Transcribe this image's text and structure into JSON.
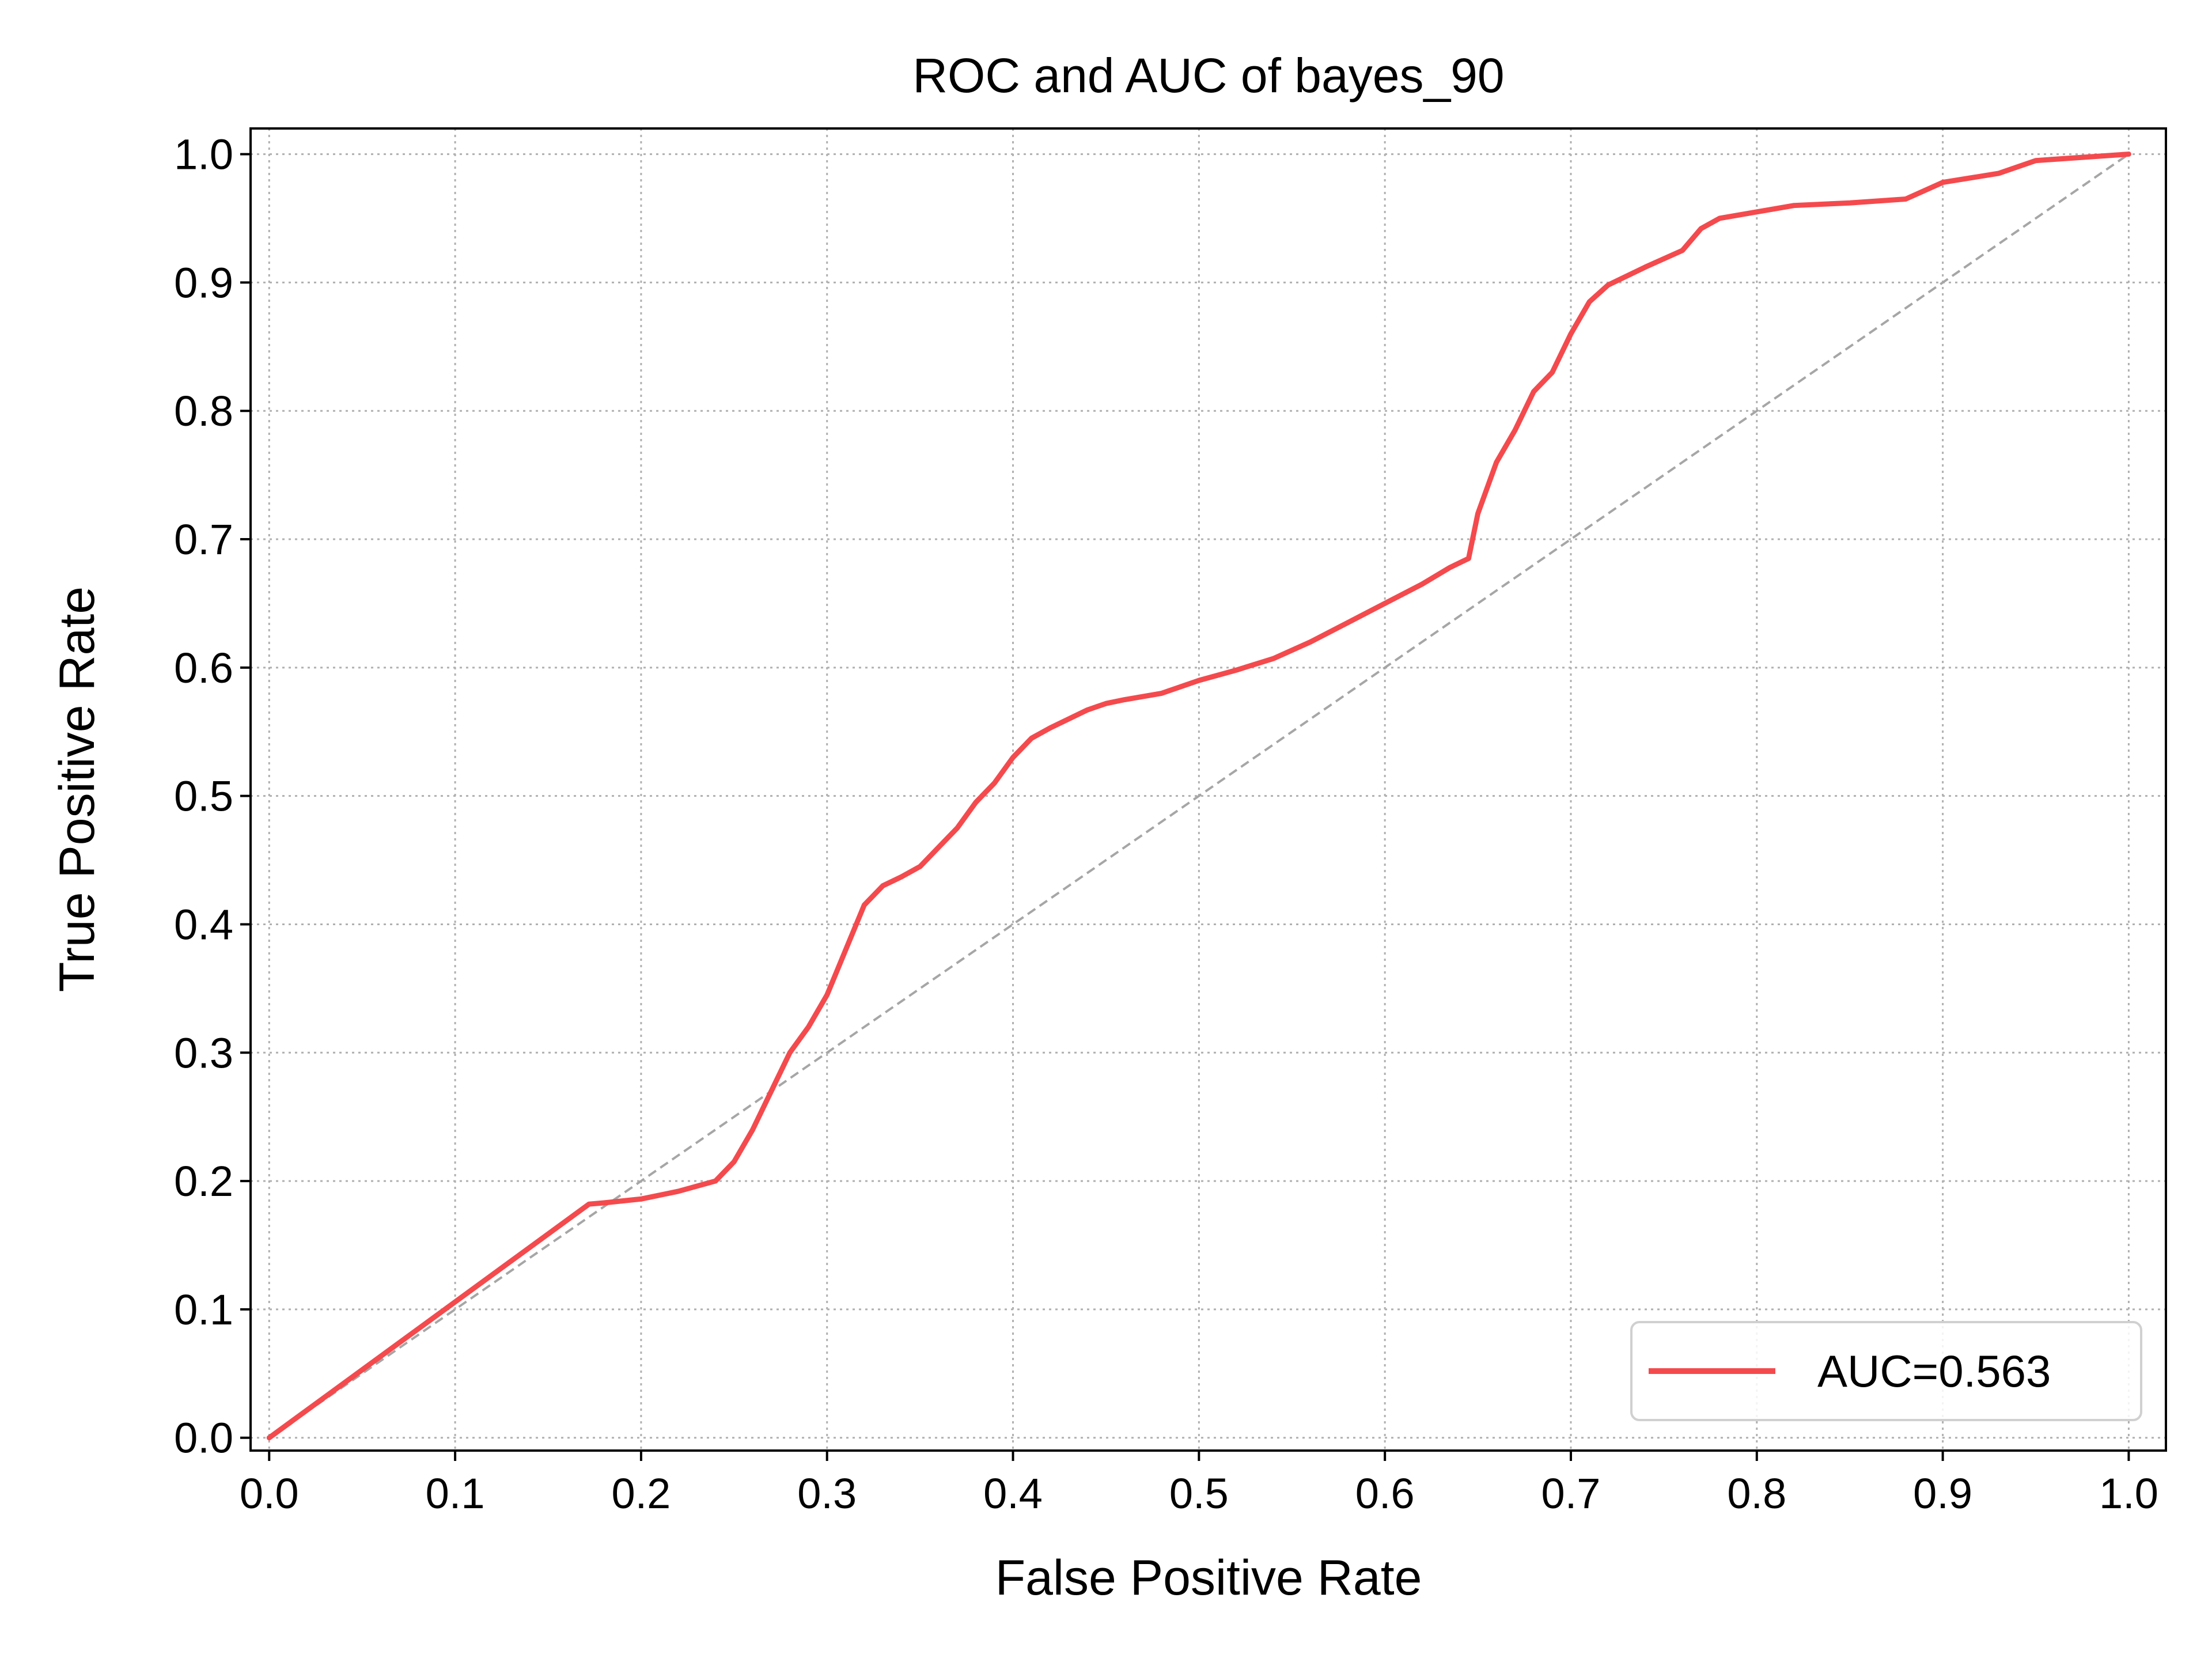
{
  "chart_data": {
    "type": "line",
    "title": "ROC and AUC of bayes_90",
    "xlabel": "False Positive Rate",
    "ylabel": "True Positive Rate",
    "xlim": [
      -0.01,
      1.02
    ],
    "ylim": [
      -0.01,
      1.02
    ],
    "xticks": [
      "0.0",
      "0.1",
      "0.2",
      "0.3",
      "0.4",
      "0.5",
      "0.6",
      "0.7",
      "0.8",
      "0.9",
      "1.0"
    ],
    "yticks": [
      "0.0",
      "0.1",
      "0.2",
      "0.3",
      "0.4",
      "0.5",
      "0.6",
      "0.7",
      "0.8",
      "0.9",
      "1.0"
    ],
    "grid": true,
    "legend_position": "lower-right",
    "colors": {
      "roc": "#f44a4d",
      "diagonal": "#a6a6a6",
      "grid": "#b0b0b0"
    },
    "series": [
      {
        "name": "AUC=0.563",
        "x": [
          0.0,
          0.172,
          0.18,
          0.2,
          0.22,
          0.24,
          0.25,
          0.26,
          0.27,
          0.28,
          0.29,
          0.3,
          0.31,
          0.32,
          0.33,
          0.34,
          0.35,
          0.36,
          0.37,
          0.38,
          0.39,
          0.4,
          0.41,
          0.42,
          0.43,
          0.44,
          0.45,
          0.46,
          0.48,
          0.5,
          0.52,
          0.54,
          0.56,
          0.58,
          0.6,
          0.62,
          0.635,
          0.645,
          0.65,
          0.66,
          0.67,
          0.68,
          0.69,
          0.7,
          0.71,
          0.72,
          0.74,
          0.76,
          0.77,
          0.78,
          0.8,
          0.82,
          0.85,
          0.88,
          0.9,
          0.93,
          0.95,
          1.0
        ],
        "y": [
          0.0,
          0.182,
          0.183,
          0.186,
          0.192,
          0.2,
          0.215,
          0.24,
          0.27,
          0.3,
          0.32,
          0.345,
          0.38,
          0.415,
          0.43,
          0.437,
          0.445,
          0.46,
          0.475,
          0.495,
          0.51,
          0.53,
          0.545,
          0.553,
          0.56,
          0.567,
          0.572,
          0.575,
          0.58,
          0.59,
          0.598,
          0.607,
          0.62,
          0.635,
          0.65,
          0.665,
          0.678,
          0.685,
          0.72,
          0.76,
          0.785,
          0.815,
          0.83,
          0.86,
          0.885,
          0.898,
          0.912,
          0.925,
          0.942,
          0.95,
          0.955,
          0.96,
          0.962,
          0.965,
          0.978,
          0.985,
          0.995,
          1.0
        ]
      },
      {
        "name": "",
        "x": [
          0.0,
          1.0
        ],
        "y": [
          0.0,
          1.0
        ]
      }
    ]
  }
}
